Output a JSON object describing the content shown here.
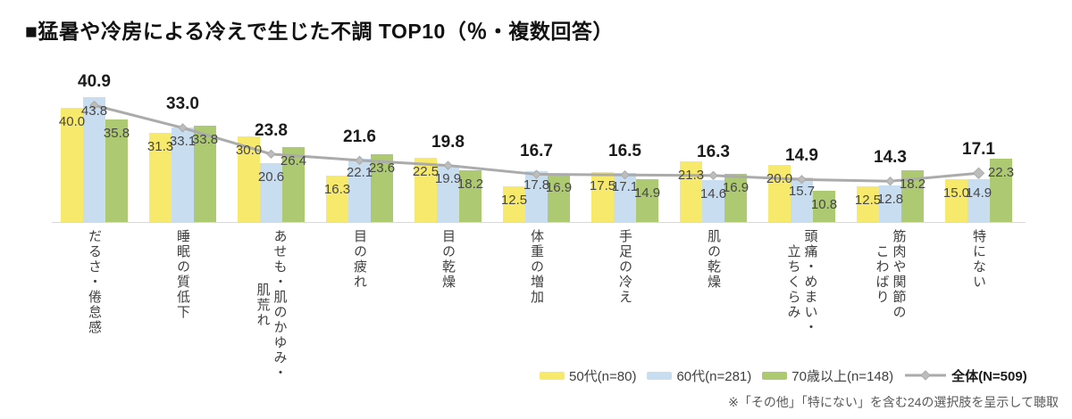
{
  "title": "■猛暑や冷房による冷えで生じた不調 TOP10（％・複数回答）",
  "footnote": "※「その他」「特にない」を含む24の選択肢を呈示して聴取",
  "chart_data": {
    "type": "bar",
    "title": "猛暑や冷房による冷えで生じた不調 TOP10（％・複数回答）",
    "xlabel": "",
    "ylabel": "",
    "y_unit": "%",
    "ylim": [
      0,
      50
    ],
    "grid": false,
    "legend_position": "bottom-right",
    "value_labels": true,
    "categories": [
      "だるさ・倦怠感",
      "睡眠の質低下",
      "あせも・肌のかゆみ・\n肌荒れ",
      "目の疲れ",
      "目の乾燥",
      "体重の増加",
      "手足の冷え",
      "肌の乾燥",
      "頭痛・めまい・\n立ちくらみ",
      "筋肉や関節の\nこわばり",
      "特にない"
    ],
    "series": [
      {
        "name": "50代(n=80)",
        "color": "#F7E96B",
        "values": [
          40.0,
          31.3,
          30.0,
          16.3,
          22.5,
          12.5,
          17.5,
          21.3,
          20.0,
          12.5,
          15.0
        ]
      },
      {
        "name": "60代(n=281)",
        "color": "#C9DDF0",
        "values": [
          43.8,
          33.1,
          20.6,
          22.1,
          19.9,
          17.8,
          17.1,
          14.6,
          15.7,
          12.8,
          14.9
        ]
      },
      {
        "name": "70歳以上(n=148)",
        "color": "#ADC972",
        "values": [
          35.8,
          33.8,
          26.4,
          23.6,
          18.2,
          16.9,
          14.9,
          16.9,
          10.8,
          18.2,
          22.3
        ]
      }
    ],
    "line_series": {
      "name": "全体(N=509)",
      "color": "#ABABAB",
      "marker_color": "#BDBDBD",
      "values": [
        40.9,
        33.0,
        23.8,
        21.6,
        19.8,
        16.7,
        16.5,
        16.3,
        14.9,
        14.3,
        17.1
      ]
    }
  }
}
